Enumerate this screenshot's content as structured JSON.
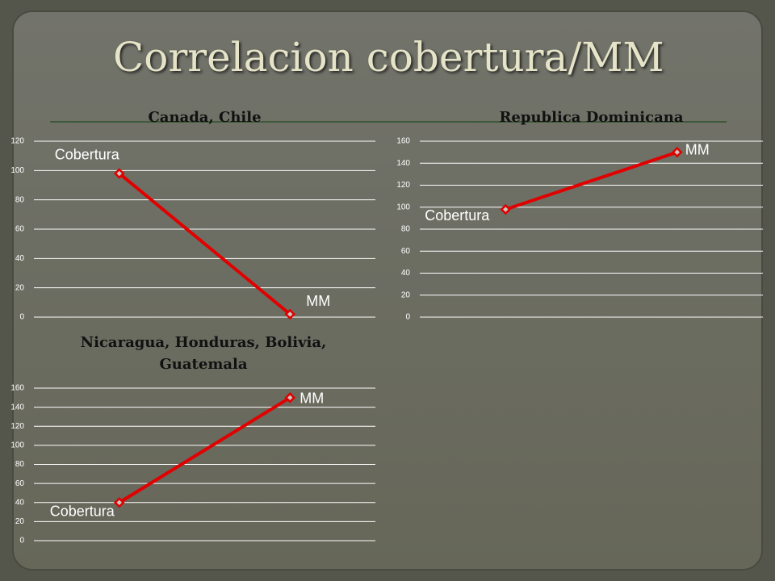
{
  "title": "Correlacion cobertura/MM",
  "chart_data": [
    {
      "type": "line",
      "title": "Canada, Chile",
      "categories": [
        "Cobertura",
        "MM"
      ],
      "values": [
        98,
        2
      ],
      "color": "#e00000",
      "ylim": [
        0,
        120
      ],
      "yticks": [
        0,
        20,
        40,
        60,
        80,
        100,
        120
      ],
      "grid": true
    },
    {
      "type": "line",
      "title": "Republica Dominicana",
      "categories": [
        "Cobertura",
        "MM"
      ],
      "values": [
        98,
        150
      ],
      "color": "#e00000",
      "ylim": [
        0,
        160
      ],
      "yticks": [
        0,
        20,
        40,
        60,
        80,
        100,
        120,
        140,
        160
      ],
      "grid": true
    },
    {
      "type": "line",
      "title": "Nicaragua, Honduras, Bolivia, Guatemala",
      "categories": [
        "Cobertura",
        "MM"
      ],
      "values": [
        40,
        150
      ],
      "color": "#e00000",
      "ylim": [
        0,
        160
      ],
      "yticks": [
        0,
        20,
        40,
        60,
        80,
        100,
        120,
        140,
        160
      ],
      "grid": true
    }
  ]
}
